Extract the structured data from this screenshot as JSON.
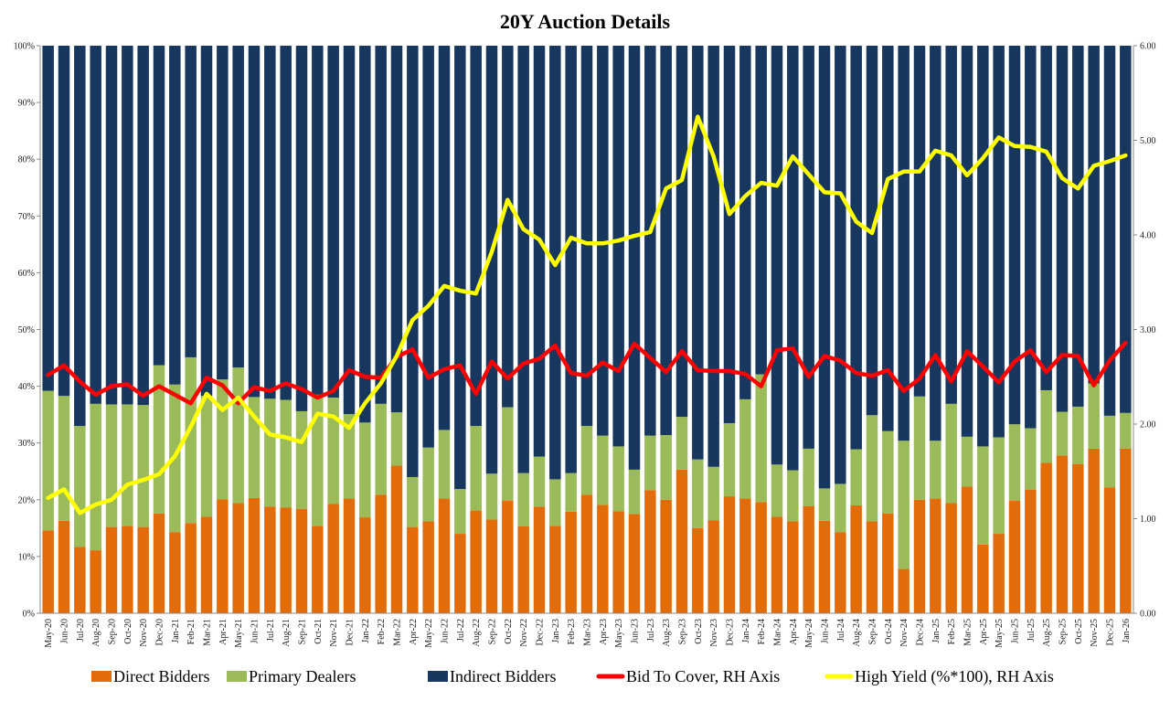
{
  "chart_data": {
    "type": "bar",
    "stacked": true,
    "title": "20Y Auction Details",
    "categories": [
      "May-20",
      "Jun-20",
      "Jul-20",
      "Aug-20",
      "Sep-20",
      "Oct-20",
      "Nov-20",
      "Dec-20",
      "Jan-21",
      "Feb-21",
      "Mar-21",
      "Apr-21",
      "May-21",
      "Jun-21",
      "Jul-21",
      "Aug-21",
      "Sep-21",
      "Oct-21",
      "Nov-21",
      "Dec-21",
      "Jan-22",
      "Feb-22",
      "Mar-22",
      "Apr-22",
      "May-22",
      "Jun-22",
      "Jul-22",
      "Aug-22",
      "Sep-22",
      "Oct-22",
      "Nov-22",
      "Dec-22",
      "Jan-23",
      "Feb-23",
      "Mar-23",
      "Apr-23",
      "May-23",
      "Jun-23",
      "Jul-23",
      "Aug-23",
      "Sep-23",
      "Oct-23",
      "Nov-23",
      "Dec-23",
      "Jan-24",
      "Feb-24",
      "Mar-24",
      "Apr-24",
      "May-24",
      "Jun-24",
      "Jul-24",
      "Aug-24",
      "Sep-24",
      "Oct-24",
      "Nov-24",
      "Dec-24",
      "Jan-25",
      "Feb-25",
      "Mar-25",
      "Apr-25",
      "May-25",
      "Jun-25",
      "Jul-25",
      "Aug-25",
      "Sep-25",
      "Oct-25",
      "Nov-25",
      "Dec-25",
      "Jan-26"
    ],
    "left_axis": {
      "ylim": [
        0,
        100
      ],
      "ticks": [
        "0%",
        "10%",
        "20%",
        "30%",
        "40%",
        "50%",
        "60%",
        "70%",
        "80%",
        "90%",
        "100%"
      ]
    },
    "right_axis": {
      "ylim": [
        0,
        6
      ],
      "ticks": [
        "0.00",
        "1.00",
        "2.00",
        "3.00",
        "4.00",
        "5.00",
        "6.00"
      ]
    },
    "grid": false,
    "legend_position": "bottom",
    "bar_series": [
      {
        "name": "Direct Bidders",
        "color": "#e36c0a",
        "values": [
          14.6,
          16.3,
          11.7,
          11.1,
          15.2,
          15.4,
          15.2,
          17.6,
          14.3,
          15.9,
          17.0,
          20.1,
          19.4,
          20.3,
          18.8,
          18.6,
          18.4,
          15.4,
          19.3,
          20.2,
          16.9,
          20.9,
          26.0,
          15.2,
          16.2,
          20.2,
          14.0,
          18.1,
          16.5,
          19.8,
          15.3,
          18.8,
          15.4,
          17.9,
          20.9,
          19.1,
          18.0,
          17.5,
          21.7,
          20.0,
          25.3,
          15.0,
          16.4,
          20.6,
          20.2,
          19.6,
          17.0,
          16.2,
          18.9,
          16.3,
          14.3,
          19.0,
          16.2,
          17.6,
          7.8,
          20.0,
          20.2,
          19.4,
          22.3,
          12.1,
          14.0,
          19.8,
          21.8,
          26.5,
          27.8,
          26.3,
          29.0,
          22.2,
          29.0
        ]
      },
      {
        "name": "Primary Dealers",
        "color": "#9bbb59",
        "values": [
          24.6,
          22.0,
          21.3,
          25.8,
          21.6,
          21.4,
          21.5,
          26.1,
          26.0,
          29.2,
          21.3,
          21.1,
          23.9,
          17.8,
          19.0,
          19.0,
          17.2,
          23.1,
          18.7,
          14.9,
          16.7,
          16.0,
          9.4,
          8.8,
          13.0,
          12.1,
          7.9,
          14.9,
          8.1,
          16.5,
          9.4,
          8.8,
          8.2,
          6.8,
          12.1,
          12.2,
          11.4,
          7.8,
          9.6,
          11.4,
          9.3,
          12.1,
          9.4,
          12.9,
          17.5,
          22.5,
          9.2,
          9.0,
          10.1,
          5.7,
          8.5,
          9.9,
          18.7,
          14.5,
          22.6,
          18.2,
          10.2,
          17.5,
          8.8,
          17.3,
          17.0,
          13.5,
          10.8,
          12.8,
          7.7,
          10.1,
          11.5,
          12.6,
          6.3
        ]
      },
      {
        "name": "Indirect Bidders",
        "color": "#17375e",
        "values": [
          60.8,
          61.7,
          67.0,
          63.1,
          63.2,
          63.2,
          63.3,
          56.3,
          59.7,
          54.9,
          61.7,
          58.8,
          56.7,
          61.9,
          62.2,
          62.4,
          64.4,
          61.5,
          62.0,
          64.9,
          66.4,
          63.1,
          64.6,
          76.0,
          70.8,
          67.7,
          78.1,
          67.0,
          75.4,
          63.7,
          75.3,
          72.4,
          76.4,
          75.3,
          67.0,
          68.7,
          70.6,
          74.7,
          68.7,
          68.6,
          65.4,
          72.9,
          74.2,
          66.5,
          62.3,
          57.9,
          73.8,
          74.8,
          71.0,
          78.0,
          77.2,
          71.1,
          65.1,
          67.9,
          69.6,
          61.8,
          69.6,
          63.1,
          68.9,
          70.6,
          69.0,
          66.7,
          67.4,
          60.7,
          64.5,
          63.6,
          59.5,
          65.2,
          64.7
        ]
      }
    ],
    "line_series": [
      {
        "name": "Bid To Cover, RH Axis",
        "color": "#ff0000",
        "axis": "right",
        "values": [
          2.52,
          2.62,
          2.45,
          2.31,
          2.4,
          2.42,
          2.3,
          2.4,
          2.31,
          2.22,
          2.49,
          2.41,
          2.22,
          2.39,
          2.35,
          2.43,
          2.37,
          2.28,
          2.35,
          2.57,
          2.5,
          2.49,
          2.71,
          2.79,
          2.49,
          2.58,
          2.62,
          2.32,
          2.66,
          2.48,
          2.64,
          2.69,
          2.83,
          2.54,
          2.51,
          2.65,
          2.56,
          2.85,
          2.7,
          2.55,
          2.77,
          2.57,
          2.56,
          2.56,
          2.53,
          2.4,
          2.78,
          2.8,
          2.5,
          2.72,
          2.67,
          2.54,
          2.51,
          2.57,
          2.35,
          2.48,
          2.73,
          2.45,
          2.77,
          2.61,
          2.44,
          2.66,
          2.78,
          2.55,
          2.73,
          2.72,
          2.41,
          2.67,
          2.86
        ]
      },
      {
        "name": "High Yield (%*100), RH Axis",
        "color": "#ffff00",
        "axis": "right",
        "values": [
          1.22,
          1.31,
          1.06,
          1.15,
          1.2,
          1.36,
          1.41,
          1.47,
          1.66,
          1.97,
          2.32,
          2.15,
          2.28,
          2.08,
          1.89,
          1.86,
          1.81,
          2.11,
          2.08,
          1.96,
          2.22,
          2.43,
          2.72,
          3.1,
          3.25,
          3.46,
          3.41,
          3.38,
          3.82,
          4.37,
          4.06,
          3.95,
          3.68,
          3.97,
          3.91,
          3.91,
          3.94,
          3.99,
          4.03,
          4.49,
          4.58,
          5.25,
          4.83,
          4.22,
          4.41,
          4.55,
          4.52,
          4.83,
          4.64,
          4.45,
          4.44,
          4.14,
          4.02,
          4.59,
          4.67,
          4.67,
          4.89,
          4.84,
          4.63,
          4.81,
          5.03,
          4.94,
          4.93,
          4.88,
          4.6,
          4.49,
          4.73,
          4.78,
          4.84
        ]
      }
    ]
  }
}
